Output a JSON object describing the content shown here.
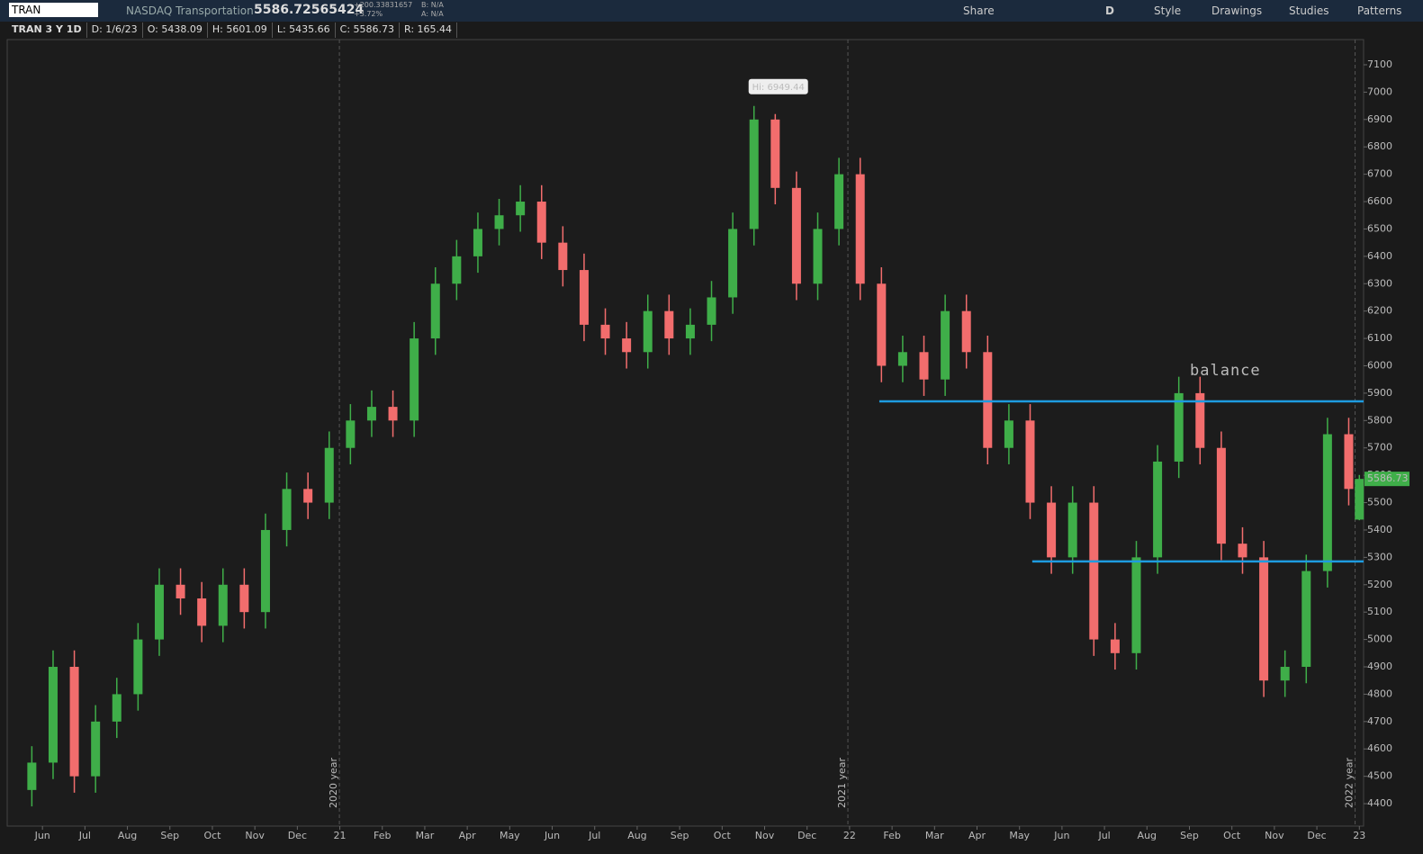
{
  "toolbar": {
    "symbol": "TRAN",
    "description": "NASDAQ Transportation",
    "last": "5586.72565424",
    "change": "+200.33831657",
    "change_pct": "+3.72%",
    "bid": "B: N/A",
    "ask": "A: N/A",
    "buttons": [
      "Share",
      "D",
      "Style",
      "Drawings",
      "Studies",
      "Patterns"
    ]
  },
  "info_bar": [
    "TRAN 3 Y 1D",
    "D: 1/6/23",
    "O: 5438.09",
    "H: 5601.09",
    "L: 5435.66",
    "C: 5586.73",
    "R: 165.44"
  ],
  "chart_data": {
    "type": "candlestick",
    "x": [
      -0.25,
      0.25,
      0.75,
      1.25,
      1.75,
      2.25,
      2.75,
      3.25,
      3.75,
      4.25,
      4.75,
      5.25,
      5.75,
      6.25,
      6.75,
      7.25,
      7.75,
      8.25,
      8.75,
      9.25,
      9.75,
      10.25,
      10.75,
      11.25,
      11.75,
      12.25,
      12.75,
      13.25,
      13.75,
      14.25,
      14.75,
      15.25,
      15.75,
      16.25,
      16.75,
      17.25,
      17.75,
      18.25,
      18.75,
      19.25,
      19.75,
      20.25,
      20.75,
      21.25,
      21.75,
      22.25,
      22.75,
      23.25,
      23.75,
      24.25,
      24.75,
      25.25,
      25.75,
      26.25,
      26.75,
      27.25,
      27.75,
      28.25,
      28.75,
      29.25,
      29.75,
      30.25,
      30.75,
      31.0
    ],
    "open": [
      4450,
      4550,
      4900,
      4500,
      4700,
      4800,
      5000,
      5200,
      5150,
      5050,
      5200,
      5100,
      5400,
      5550,
      5500,
      5700,
      5800,
      5850,
      5800,
      6100,
      6300,
      6400,
      6500,
      6550,
      6600,
      6450,
      6350,
      6150,
      6100,
      6050,
      6200,
      6100,
      6150,
      6250,
      6500,
      6900,
      6650,
      6300,
      6500,
      6700,
      6300,
      6000,
      6050,
      5950,
      6200,
      6050,
      5700,
      5800,
      5500,
      5300,
      5500,
      5000,
      4950,
      5300,
      5650,
      5900,
      5700,
      5350,
      5300,
      4850,
      4900,
      5250,
      5750,
      5438.09
    ],
    "high": [
      4610,
      4960,
      4960,
      4760,
      4860,
      5060,
      5260,
      5260,
      5210,
      5260,
      5260,
      5460,
      5610,
      5610,
      5760,
      5860,
      5910,
      5910,
      6160,
      6360,
      6460,
      6560,
      6610,
      6660,
      6660,
      6510,
      6410,
      6210,
      6160,
      6260,
      6260,
      6210,
      6310,
      6560,
      6949.44,
      6920,
      6710,
      6560,
      6760,
      6760,
      6360,
      6110,
      6110,
      6260,
      6260,
      6110,
      5860,
      5860,
      5560,
      5560,
      5560,
      5060,
      5360,
      5710,
      5960,
      5960,
      5760,
      5410,
      5360,
      4960,
      5310,
      5810,
      5810,
      5601.09
    ],
    "low": [
      4390,
      4490,
      4440,
      4440,
      4640,
      4740,
      4940,
      5090,
      4990,
      4990,
      5040,
      5040,
      5340,
      5440,
      5440,
      5640,
      5740,
      5740,
      5740,
      6040,
      6240,
      6340,
      6440,
      6490,
      6390,
      6290,
      6090,
      6040,
      5990,
      5990,
      6040,
      6040,
      6090,
      6190,
      6440,
      6590,
      6240,
      6240,
      6440,
      6240,
      5940,
      5940,
      5890,
      5890,
      5990,
      5640,
      5640,
      5440,
      5240,
      5240,
      4940,
      4890,
      4890,
      5240,
      5590,
      5640,
      5290,
      5240,
      4790,
      4790,
      4840,
      5190,
      5490,
      5435.66
    ],
    "close": [
      4550,
      4900,
      4500,
      4700,
      4800,
      5000,
      5200,
      5150,
      5050,
      5200,
      5100,
      5400,
      5550,
      5500,
      5700,
      5800,
      5850,
      5800,
      6100,
      6300,
      6400,
      6500,
      6550,
      6600,
      6450,
      6350,
      6150,
      6100,
      6050,
      6200,
      6100,
      6150,
      6250,
      6500,
      6900,
      6650,
      6300,
      6500,
      6700,
      6300,
      6000,
      6050,
      5950,
      6200,
      6050,
      5700,
      5800,
      5500,
      5300,
      5500,
      5000,
      4950,
      5300,
      5650,
      5900,
      5700,
      5350,
      5300,
      4850,
      4900,
      5250,
      5750,
      5550,
      5586.73
    ],
    "up_color": "#3fae49",
    "down_color": "#f26d6d",
    "xlim": [
      -0.83,
      31.1
    ],
    "xticks": [
      {
        "value": 0,
        "label": "Jun"
      },
      {
        "value": 1,
        "label": "Jul"
      },
      {
        "value": 2,
        "label": "Aug"
      },
      {
        "value": 3,
        "label": "Sep"
      },
      {
        "value": 4,
        "label": "Oct"
      },
      {
        "value": 5,
        "label": "Nov"
      },
      {
        "value": 6,
        "label": "Dec"
      },
      {
        "value": 7,
        "label": "21"
      },
      {
        "value": 8,
        "label": "Feb"
      },
      {
        "value": 9,
        "label": "Mar"
      },
      {
        "value": 10,
        "label": "Apr"
      },
      {
        "value": 11,
        "label": "May"
      },
      {
        "value": 12,
        "label": "Jun"
      },
      {
        "value": 13,
        "label": "Jul"
      },
      {
        "value": 14,
        "label": "Aug"
      },
      {
        "value": 15,
        "label": "Sep"
      },
      {
        "value": 16,
        "label": "Oct"
      },
      {
        "value": 17,
        "label": "Nov"
      },
      {
        "value": 18,
        "label": "Dec"
      },
      {
        "value": 19,
        "label": "22"
      },
      {
        "value": 20,
        "label": "Feb"
      },
      {
        "value": 21,
        "label": "Mar"
      },
      {
        "value": 22,
        "label": "Apr"
      },
      {
        "value": 23,
        "label": "May"
      },
      {
        "value": 24,
        "label": "Jun"
      },
      {
        "value": 25,
        "label": "Jul"
      },
      {
        "value": 26,
        "label": "Aug"
      },
      {
        "value": 27,
        "label": "Sep"
      },
      {
        "value": 28,
        "label": "Oct"
      },
      {
        "value": 29,
        "label": "Nov"
      },
      {
        "value": 30,
        "label": "Dec"
      },
      {
        "value": 31,
        "label": "23"
      }
    ],
    "ylim": [
      4318,
      7192
    ],
    "yticks": [
      4400,
      4500,
      4600,
      4700,
      4800,
      4900,
      5000,
      5100,
      5200,
      5300,
      5400,
      5500,
      5600,
      5700,
      5800,
      5900,
      6000,
      6100,
      6200,
      6300,
      6400,
      6500,
      6600,
      6700,
      6800,
      6900,
      7000,
      7100
    ],
    "separators": [
      {
        "value": 6.99,
        "label": "2020 year"
      },
      {
        "value": 18.96,
        "label": "2021 year"
      },
      {
        "value": 30.9,
        "label": "2022 year"
      }
    ],
    "levels": [
      {
        "value": 5870,
        "from": 19.7,
        "color": "#1e9be0"
      },
      {
        "value": 5285,
        "from": 23.3,
        "color": "#1e9be0"
      }
    ],
    "annotation": "balance",
    "hi_label": "Hi: 6949.44",
    "last_price_label": "5586.73"
  }
}
